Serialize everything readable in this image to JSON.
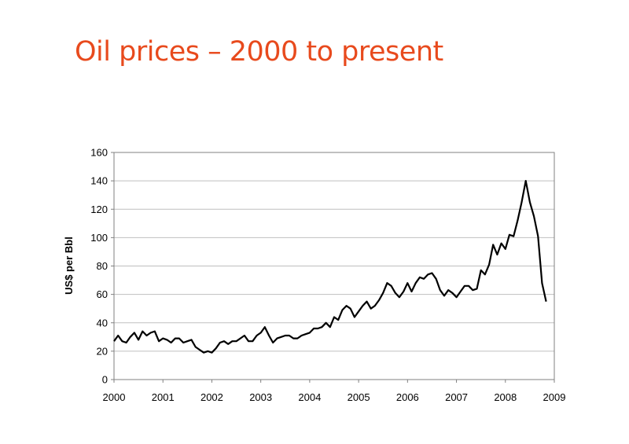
{
  "slide": {
    "title": "Oil prices – 2000 to present"
  },
  "colors": {
    "title": "#e84a1d",
    "line": "#000000",
    "gridline": "#bfbfbf",
    "axis": "#808080"
  },
  "chart_data": {
    "type": "line",
    "title": "",
    "xlabel": "",
    "ylabel": "US$ per Bbl",
    "xlim": [
      2000,
      2009
    ],
    "ylim": [
      0,
      160
    ],
    "xticks": [
      "2000",
      "2001",
      "2002",
      "2003",
      "2004",
      "2005",
      "2006",
      "2007",
      "2008",
      "2009"
    ],
    "yticks": [
      "0",
      "20",
      "40",
      "60",
      "80",
      "100",
      "120",
      "140",
      "160"
    ],
    "grid": "horizontal",
    "legend": "none",
    "series": [
      {
        "x": [
          2000.0,
          2000.083,
          2000.167,
          2000.25,
          2000.333,
          2000.417,
          2000.5,
          2000.583,
          2000.667,
          2000.75,
          2000.833,
          2000.917,
          2001.0,
          2001.083,
          2001.167,
          2001.25,
          2001.333,
          2001.417,
          2001.5,
          2001.583,
          2001.667,
          2001.75,
          2001.833,
          2001.917,
          2002.0,
          2002.083,
          2002.167,
          2002.25,
          2002.333,
          2002.417,
          2002.5,
          2002.583,
          2002.667,
          2002.75,
          2002.833,
          2002.917,
          2003.0,
          2003.083,
          2003.167,
          2003.25,
          2003.333,
          2003.417,
          2003.5,
          2003.583,
          2003.667,
          2003.75,
          2003.833,
          2003.917,
          2004.0,
          2004.083,
          2004.167,
          2004.25,
          2004.333,
          2004.417,
          2004.5,
          2004.583,
          2004.667,
          2004.75,
          2004.833,
          2004.917,
          2005.0,
          2005.083,
          2005.167,
          2005.25,
          2005.333,
          2005.417,
          2005.5,
          2005.583,
          2005.667,
          2005.75,
          2005.833,
          2005.917,
          2006.0,
          2006.083,
          2006.167,
          2006.25,
          2006.333,
          2006.417,
          2006.5,
          2006.583,
          2006.667,
          2006.75,
          2006.833,
          2006.917,
          2007.0,
          2007.083,
          2007.167,
          2007.25,
          2007.333,
          2007.417,
          2007.5,
          2007.583,
          2007.667,
          2007.75,
          2007.833,
          2007.917,
          2008.0,
          2008.083,
          2008.167,
          2008.25,
          2008.333,
          2008.417,
          2008.5,
          2008.583,
          2008.667,
          2008.75,
          2008.833
        ],
        "values": [
          27,
          31,
          27,
          26,
          30,
          33,
          28,
          34,
          31,
          33,
          34,
          27,
          29,
          28,
          26,
          29,
          29,
          26,
          27,
          28,
          23,
          21,
          19,
          20,
          19,
          22,
          26,
          27,
          25,
          27,
          27,
          29,
          31,
          27,
          27,
          31,
          33,
          37,
          31,
          26,
          29,
          30,
          31,
          31,
          29,
          29,
          31,
          32,
          33,
          36,
          36,
          37,
          40,
          37,
          44,
          42,
          49,
          52,
          50,
          44,
          48,
          52,
          55,
          50,
          52,
          56,
          61,
          68,
          66,
          61,
          58,
          62,
          68,
          62,
          68,
          72,
          71,
          74,
          75,
          71,
          63,
          59,
          63,
          61,
          58,
          62,
          66,
          66,
          63,
          64,
          77,
          74,
          81,
          95,
          88,
          96,
          92,
          102,
          101,
          112,
          125,
          140,
          125,
          115,
          101,
          68,
          55
        ]
      }
    ]
  }
}
